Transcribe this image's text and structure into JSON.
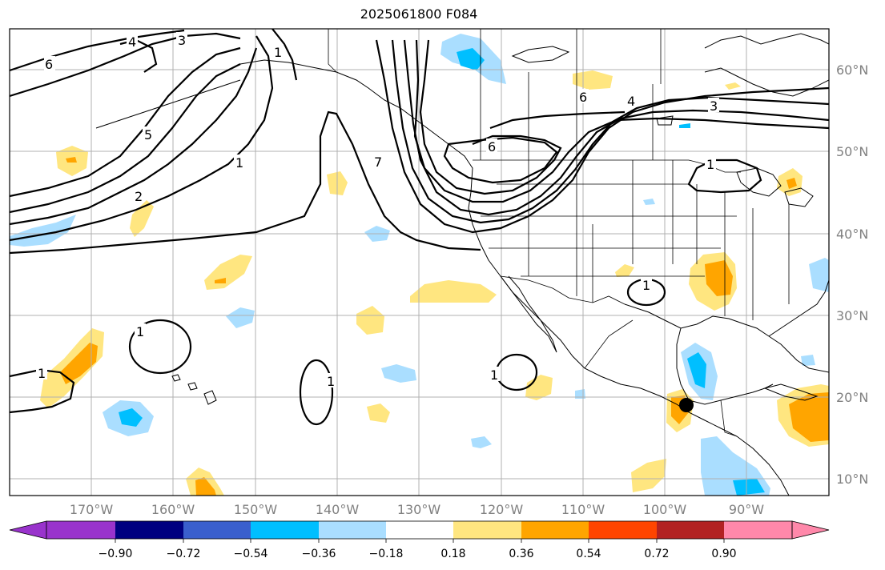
{
  "title": "2025061800 F084",
  "map": {
    "projection": "equirectangular",
    "lon_range": [
      -180,
      -80
    ],
    "lat_range": [
      8,
      65
    ],
    "gridlines": true,
    "lon_ticks": [
      "170°W",
      "160°W",
      "150°W",
      "140°W",
      "130°W",
      "120°W",
      "110°W",
      "100°W",
      "90°W"
    ],
    "lat_ticks": [
      "60°N",
      "50°N",
      "40°N",
      "30°N",
      "20°N",
      "10°N"
    ],
    "contour_labels": [
      "6",
      "3",
      "4",
      "1",
      "5",
      "2",
      "1",
      "6",
      "4",
      "3",
      "7",
      "6",
      "1",
      "1",
      "1",
      "1",
      "1",
      "1"
    ],
    "marker": {
      "lon": -96.3,
      "lat": 19.1,
      "label": "point-marker"
    }
  },
  "colorbar": {
    "ticks": [
      "−0.90",
      "−0.72",
      "−0.54",
      "−0.36",
      "−0.18",
      "0.18",
      "0.36",
      "0.54",
      "0.72",
      "0.90"
    ],
    "colors": [
      "#9933cc",
      "#000080",
      "#3a5fcd",
      "#00bfff",
      "#aadeff",
      "#ffffff",
      "#ffe680",
      "#ffa500",
      "#ff4500",
      "#b22222",
      "#ff88aa"
    ],
    "extend": "both"
  }
}
